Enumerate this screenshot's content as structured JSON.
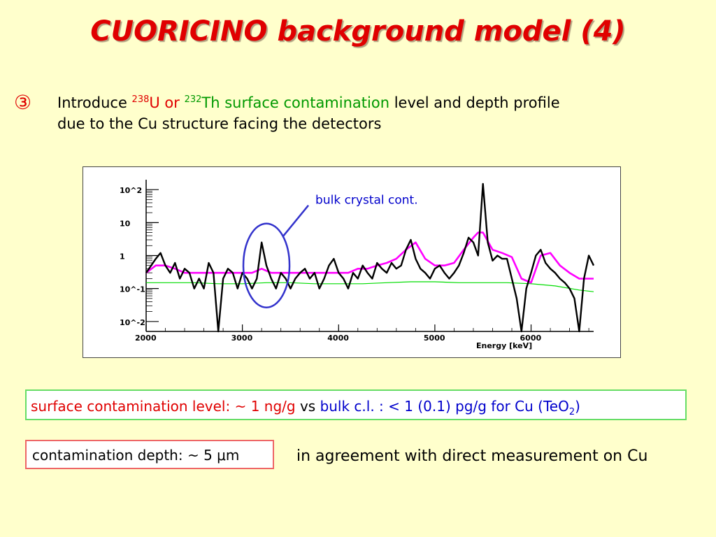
{
  "slide": {
    "title": "CUORICINO background model (4)",
    "bullet_symbol": "③",
    "intro": {
      "p1": "Introduce ",
      "sup1": "238",
      "u": "U or ",
      "sup2": "232",
      "th": "Th surface contamination",
      "p2": " level and depth profile",
      "line2": "due to the Cu structure facing the detectors"
    },
    "box1": {
      "red": "surface contamination level: ~ 1 ng/g",
      "vs": "vs",
      "blue": "bulk c.l. : < 1 (0.1) pg/g for Cu (TeO",
      "sub": "2",
      "close": ")"
    },
    "box2": "contamination depth: ~ 5 μm",
    "agreement": "in agreement with direct measurement on Cu"
  },
  "colors": {
    "title": "#e00000",
    "background": "#ffffcc",
    "green": "#009900",
    "blue": "#0000cc"
  },
  "chart_data": {
    "type": "line",
    "xlabel": "Energy [keV]",
    "ylabel": "",
    "x_ticks": [
      "2000",
      "3000",
      "4000",
      "5000",
      "6000"
    ],
    "y_ticks": [
      "10^-2",
      "10^-1",
      "1",
      "10",
      "10^2"
    ],
    "xlim": [
      2000,
      6650
    ],
    "ylim": [
      0.005,
      200
    ],
    "y_scale": "log",
    "annotation": "bulk crystal cont.",
    "series": [
      {
        "color": "#000000",
        "x": [
          2000,
          2100,
          2150,
          2200,
          2250,
          2300,
          2350,
          2400,
          2450,
          2500,
          2550,
          2600,
          2650,
          2700,
          2750,
          2800,
          2850,
          2900,
          2950,
          3000,
          3050,
          3100,
          3150,
          3200,
          3250,
          3300,
          3350,
          3400,
          3450,
          3500,
          3550,
          3600,
          3650,
          3700,
          3750,
          3800,
          3850,
          3900,
          3950,
          4000,
          4050,
          4100,
          4150,
          4200,
          4250,
          4300,
          4350,
          4400,
          4450,
          4500,
          4550,
          4600,
          4650,
          4700,
          4750,
          4800,
          4850,
          4900,
          4950,
          5000,
          5050,
          5100,
          5150,
          5200,
          5250,
          5300,
          5350,
          5400,
          5450,
          5500,
          5550,
          5600,
          5650,
          5700,
          5750,
          5800,
          5850,
          5900,
          5950,
          6000,
          6050,
          6100,
          6150,
          6200,
          6250,
          6300,
          6350,
          6400,
          6450,
          6500,
          6550,
          6600,
          6650
        ],
        "values": [
          0.3,
          0.8,
          1.2,
          0.5,
          0.3,
          0.6,
          0.2,
          0.4,
          0.3,
          0.1,
          0.2,
          0.1,
          0.6,
          0.3,
          0.004,
          0.2,
          0.4,
          0.3,
          0.1,
          0.3,
          0.2,
          0.1,
          0.2,
          2.5,
          0.5,
          0.2,
          0.1,
          0.3,
          0.2,
          0.1,
          0.2,
          0.3,
          0.4,
          0.2,
          0.3,
          0.1,
          0.2,
          0.5,
          0.8,
          0.3,
          0.2,
          0.1,
          0.3,
          0.2,
          0.5,
          0.3,
          0.2,
          0.6,
          0.4,
          0.3,
          0.6,
          0.4,
          0.5,
          1.5,
          3.0,
          0.8,
          0.4,
          0.3,
          0.2,
          0.4,
          0.5,
          0.3,
          0.2,
          0.3,
          0.5,
          1.2,
          3.5,
          2.5,
          1.0,
          150.0,
          2.5,
          0.7,
          1.0,
          0.8,
          0.8,
          0.2,
          0.05,
          0.004,
          0.1,
          0.3,
          1.0,
          1.5,
          0.6,
          0.4,
          0.3,
          0.2,
          0.15,
          0.1,
          0.05,
          0.004,
          0.2,
          1.0,
          0.5
        ]
      },
      {
        "color": "#ff00ff",
        "x": [
          2000,
          2100,
          2200,
          2300,
          2400,
          2500,
          2600,
          2700,
          2800,
          2900,
          3000,
          3100,
          3200,
          3300,
          3400,
          3500,
          3600,
          3700,
          3800,
          3900,
          4000,
          4100,
          4200,
          4300,
          4400,
          4500,
          4600,
          4700,
          4800,
          4900,
          5000,
          5100,
          5200,
          5300,
          5400,
          5450,
          5500,
          5600,
          5700,
          5800,
          5900,
          6000,
          6100,
          6200,
          6300,
          6400,
          6500,
          6600,
          6650
        ],
        "values": [
          0.3,
          0.5,
          0.5,
          0.4,
          0.3,
          0.3,
          0.3,
          0.3,
          0.3,
          0.3,
          0.3,
          0.3,
          0.4,
          0.3,
          0.3,
          0.3,
          0.3,
          0.3,
          0.3,
          0.3,
          0.3,
          0.3,
          0.4,
          0.4,
          0.5,
          0.6,
          0.8,
          1.5,
          2.5,
          0.8,
          0.5,
          0.5,
          0.6,
          1.5,
          3.5,
          5.0,
          5.0,
          1.5,
          1.2,
          0.9,
          0.2,
          0.15,
          1.0,
          1.2,
          0.5,
          0.3,
          0.2,
          0.2,
          0.2
        ]
      },
      {
        "color": "#00dd00",
        "x": [
          2000,
          2250,
          2500,
          2750,
          3000,
          3250,
          3500,
          3750,
          4000,
          4250,
          4500,
          4750,
          5000,
          5250,
          5500,
          5750,
          6000,
          6250,
          6500,
          6650
        ],
        "values": [
          0.15,
          0.15,
          0.15,
          0.14,
          0.14,
          0.15,
          0.15,
          0.14,
          0.14,
          0.14,
          0.15,
          0.16,
          0.16,
          0.15,
          0.15,
          0.15,
          0.14,
          0.12,
          0.09,
          0.08
        ]
      }
    ]
  }
}
